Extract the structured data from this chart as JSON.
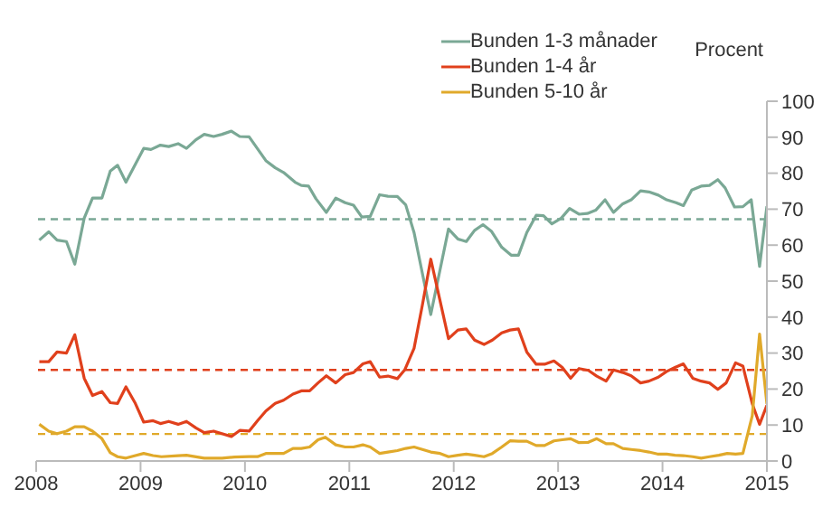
{
  "chart_data": {
    "type": "line",
    "ylabel": "Procent",
    "xlim": [
      2008,
      2015
    ],
    "xticks": [
      2008,
      2009,
      2010,
      2011,
      2012,
      2013,
      2014,
      2015
    ],
    "ylim": [
      0,
      100
    ],
    "yticks": [
      0,
      10,
      20,
      30,
      40,
      50,
      60,
      70,
      80,
      90,
      100
    ],
    "legend": "top",
    "marker": "none",
    "line_style": "solid",
    "series": [
      {
        "name": "Bunden 1-3 månader",
        "color": "#7aa895",
        "x": [
          2008.03,
          2008.12,
          2008.2,
          2008.29,
          2008.37,
          2008.46,
          2008.54,
          2008.63,
          2008.71,
          2008.78,
          2008.86,
          2009.03,
          2009.1,
          2009.19,
          2009.27,
          2009.36,
          2009.44,
          2009.53,
          2009.61,
          2009.7,
          2009.78,
          2009.87,
          2009.95,
          2010.04,
          2010.2,
          2010.29,
          2010.37,
          2010.48,
          2010.54,
          2010.61,
          2010.68,
          2010.78,
          2010.87,
          2010.96,
          2011.04,
          2011.12,
          2011.2,
          2011.29,
          2011.37,
          2011.46,
          2011.54,
          2011.62,
          2011.78,
          2011.95,
          2012.04,
          2012.12,
          2012.2,
          2012.28,
          2012.36,
          2012.46,
          2012.55,
          2012.62,
          2012.7,
          2012.79,
          2012.86,
          2012.94,
          2013.03,
          2013.11,
          2013.2,
          2013.28,
          2013.36,
          2013.45,
          2013.53,
          2013.62,
          2013.7,
          2013.79,
          2013.87,
          2013.96,
          2014.04,
          2014.13,
          2014.2,
          2014.28,
          2014.37,
          2014.45,
          2014.53,
          2014.6,
          2014.69,
          2014.77,
          2014.85,
          2014.93,
          2015.0
        ],
        "values": [
          61.4,
          63.7,
          61.4,
          61,
          54.7,
          67.5,
          73.1,
          73.1,
          80.6,
          82.2,
          77.5,
          86.9,
          86.6,
          87.8,
          87.4,
          88.2,
          86.9,
          89.3,
          90.8,
          90.2,
          90.8,
          91.7,
          90.2,
          90.1,
          83.5,
          81.5,
          80.2,
          77.5,
          76.6,
          76.4,
          72.9,
          69.1,
          73.1,
          71.8,
          71.1,
          67.8,
          68,
          74,
          73.6,
          73.5,
          71.2,
          63.5,
          40.7,
          64.5,
          61.7,
          61,
          64.1,
          65.7,
          63.9,
          59.4,
          57.2,
          57.2,
          63.5,
          68.3,
          68.2,
          65.9,
          67.5,
          70.2,
          68.6,
          68.8,
          69.7,
          72.6,
          69.1,
          71.5,
          72.6,
          75.1,
          74.8,
          73.9,
          72.6,
          71.8,
          71,
          75.3,
          76.4,
          76.6,
          78.2,
          75.9,
          70.6,
          70.7,
          72.6,
          54.1,
          70.8
        ]
      },
      {
        "name": "Bunden 1-4 år",
        "color": "#e0401c",
        "x": [
          2008.03,
          2008.12,
          2008.2,
          2008.29,
          2008.37,
          2008.46,
          2008.54,
          2008.63,
          2008.71,
          2008.78,
          2008.86,
          2008.95,
          2009.03,
          2009.12,
          2009.19,
          2009.27,
          2009.36,
          2009.44,
          2009.53,
          2009.61,
          2009.7,
          2009.78,
          2009.87,
          2009.95,
          2010.04,
          2010.12,
          2010.2,
          2010.29,
          2010.37,
          2010.46,
          2010.54,
          2010.62,
          2010.7,
          2010.78,
          2010.87,
          2010.96,
          2011.04,
          2011.13,
          2011.2,
          2011.29,
          2011.37,
          2011.46,
          2011.53,
          2011.62,
          2011.7,
          2011.78,
          2011.95,
          2012.04,
          2012.12,
          2012.2,
          2012.29,
          2012.37,
          2012.46,
          2012.54,
          2012.62,
          2012.7,
          2012.79,
          2012.87,
          2012.96,
          2013.04,
          2013.12,
          2013.2,
          2013.29,
          2013.37,
          2013.46,
          2013.53,
          2013.62,
          2013.7,
          2013.79,
          2013.87,
          2013.96,
          2014.04,
          2014.12,
          2014.2,
          2014.29,
          2014.37,
          2014.45,
          2014.53,
          2014.61,
          2014.7,
          2014.77,
          2014.86,
          2014.93,
          2015.0
        ],
        "values": [
          27.6,
          27.6,
          30.3,
          30,
          35.1,
          23,
          18.2,
          19.3,
          16.2,
          16,
          20.6,
          16,
          10.8,
          11.2,
          10.4,
          11,
          10.2,
          11,
          9.2,
          7.9,
          8.3,
          7.6,
          6.8,
          8.5,
          8.3,
          11.2,
          13.9,
          16,
          16.9,
          18.6,
          19.5,
          19.5,
          21.7,
          23.7,
          21.7,
          24,
          24.6,
          27,
          27.6,
          23.3,
          23.6,
          22.9,
          25.3,
          31.3,
          43.4,
          56.1,
          34,
          36.4,
          36.7,
          33.6,
          32.4,
          33.6,
          35.6,
          36.4,
          36.7,
          30.3,
          26.9,
          26.9,
          27.8,
          26,
          23,
          25.7,
          25.2,
          23.6,
          22.2,
          25.3,
          24.6,
          23.7,
          21.7,
          22.2,
          23.3,
          24.9,
          26,
          27,
          23,
          22.2,
          21.7,
          19.9,
          21.7,
          27.3,
          26.4,
          15.9,
          10.2,
          15.5
        ]
      },
      {
        "name": "Bunden 5-10 år",
        "color": "#e0a92a",
        "x": [
          2008.03,
          2008.12,
          2008.2,
          2008.29,
          2008.37,
          2008.46,
          2008.54,
          2008.63,
          2008.71,
          2008.78,
          2008.86,
          2008.95,
          2009.03,
          2009.12,
          2009.2,
          2009.36,
          2009.44,
          2009.61,
          2009.7,
          2009.78,
          2009.9,
          2010.04,
          2010.12,
          2010.2,
          2010.29,
          2010.37,
          2010.46,
          2010.54,
          2010.62,
          2010.7,
          2010.77,
          2010.87,
          2010.96,
          2011.04,
          2011.13,
          2011.2,
          2011.29,
          2011.37,
          2011.46,
          2011.54,
          2011.62,
          2011.7,
          2011.78,
          2011.87,
          2011.95,
          2012.04,
          2012.12,
          2012.2,
          2012.29,
          2012.37,
          2012.46,
          2012.54,
          2012.62,
          2012.7,
          2012.79,
          2012.87,
          2012.96,
          2013.04,
          2013.12,
          2013.2,
          2013.29,
          2013.37,
          2013.46,
          2013.53,
          2013.62,
          2013.7,
          2013.79,
          2013.87,
          2013.96,
          2014.04,
          2014.12,
          2014.2,
          2014.29,
          2014.37,
          2014.45,
          2014.54,
          2014.62,
          2014.7,
          2014.77,
          2014.86,
          2014.93,
          2015.0
        ],
        "values": [
          10.2,
          8.3,
          7.6,
          8.3,
          9.5,
          9.5,
          8.3,
          6.2,
          2.3,
          1.2,
          0.8,
          1.5,
          2.1,
          1.5,
          1.2,
          1.5,
          1.6,
          0.8,
          0.8,
          0.8,
          1.1,
          1.2,
          1.2,
          2.1,
          2.1,
          2.1,
          3.5,
          3.5,
          3.9,
          5.9,
          6.6,
          4.5,
          3.9,
          3.9,
          4.5,
          3.9,
          2.1,
          2.5,
          2.9,
          3.5,
          3.9,
          3.2,
          2.5,
          2.1,
          1.2,
          1.6,
          1.9,
          1.6,
          1.2,
          2.1,
          3.9,
          5.6,
          5.5,
          5.5,
          4.3,
          4.3,
          5.6,
          5.9,
          6.2,
          5.1,
          5.2,
          6.2,
          4.8,
          4.8,
          3.5,
          3.2,
          2.9,
          2.5,
          1.9,
          1.9,
          1.6,
          1.5,
          1.2,
          0.8,
          1.2,
          1.6,
          2.1,
          1.9,
          2.1,
          12.6,
          35.3,
          15.9
        ]
      }
    ],
    "ref_lines": [
      {
        "axis": "y",
        "value": 67.2,
        "color": "#7aa895",
        "line_style": "dashed"
      },
      {
        "axis": "y",
        "value": 25.3,
        "color": "#e0401c",
        "line_style": "dashed"
      },
      {
        "axis": "y",
        "value": 7.5,
        "color": "#e0a92a",
        "line_style": "dashed"
      }
    ]
  }
}
